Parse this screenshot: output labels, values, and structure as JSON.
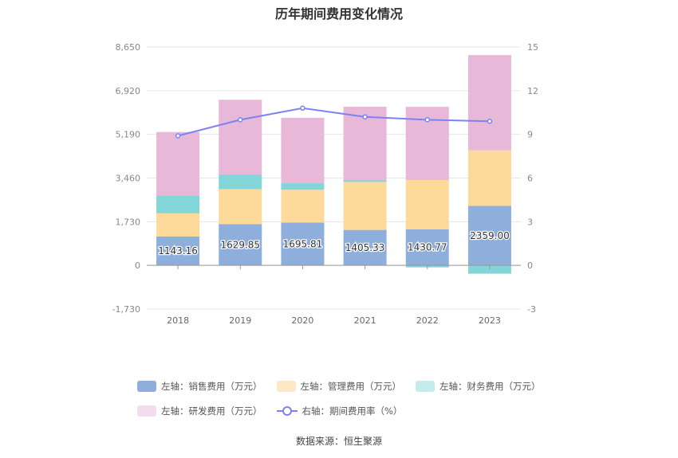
{
  "title": "历年期间费用变化情况",
  "source": "数据来源：恒生聚源",
  "colors": {
    "sales": "#8eaedc",
    "admin": "#fdd99a",
    "finance": "#82d6d8",
    "rnd": "#e8b8d8",
    "rate": "#7d82f0",
    "legend_admin": "#fde7c4",
    "legend_finance": "#c4ecec",
    "legend_rnd": "#f3dced"
  },
  "legend": {
    "sales": "左轴：销售费用（万元）",
    "admin": "左轴：管理费用（万元）",
    "finance": "左轴：财务费用（万元）",
    "rnd": "左轴：研发费用（万元）",
    "rate": "右轴：期间费用率（%）"
  },
  "chart_data": {
    "type": "bar",
    "stacked": true,
    "categories": [
      "2018",
      "2019",
      "2020",
      "2021",
      "2022",
      "2023"
    ],
    "left_axis": {
      "ticks": [
        "8,650",
        "6,920",
        "5,190",
        "3,460",
        "1,730",
        "0",
        "-1,730"
      ],
      "ylim": [
        -1730,
        8650
      ]
    },
    "right_axis": {
      "ticks": [
        "15",
        "12",
        "9",
        "6",
        "3",
        "0",
        "-3"
      ],
      "ylim": [
        -3,
        15
      ]
    },
    "series": [
      {
        "name": "左轴：销售费用（万元）",
        "key": "sales",
        "axis": "left",
        "values": [
          1143.16,
          1629.85,
          1695.81,
          1405.33,
          1430.77,
          2359.0
        ]
      },
      {
        "name": "左轴：管理费用（万元）",
        "key": "admin",
        "axis": "left",
        "values": [
          920,
          1390,
          1300,
          1900,
          1950,
          2200
        ]
      },
      {
        "name": "左轴：财务费用（万元）",
        "key": "finance",
        "axis": "left",
        "values": [
          700,
          580,
          270,
          60,
          -80,
          -330
        ]
      },
      {
        "name": "左轴：研发费用（万元）",
        "key": "rnd",
        "axis": "left",
        "values": [
          2520,
          2960,
          2580,
          2920,
          2900,
          3770
        ]
      },
      {
        "name": "右轴：期间费用率（%）",
        "key": "rate",
        "axis": "right",
        "type": "line",
        "values": [
          8.9,
          10.0,
          10.8,
          10.2,
          10.0,
          9.9
        ]
      }
    ],
    "data_labels": [
      "1143.16",
      "1629.85",
      "1695.81",
      "1405.33",
      "1430.77",
      "2359.00"
    ],
    "grid": true,
    "legend_position": "bottom"
  }
}
